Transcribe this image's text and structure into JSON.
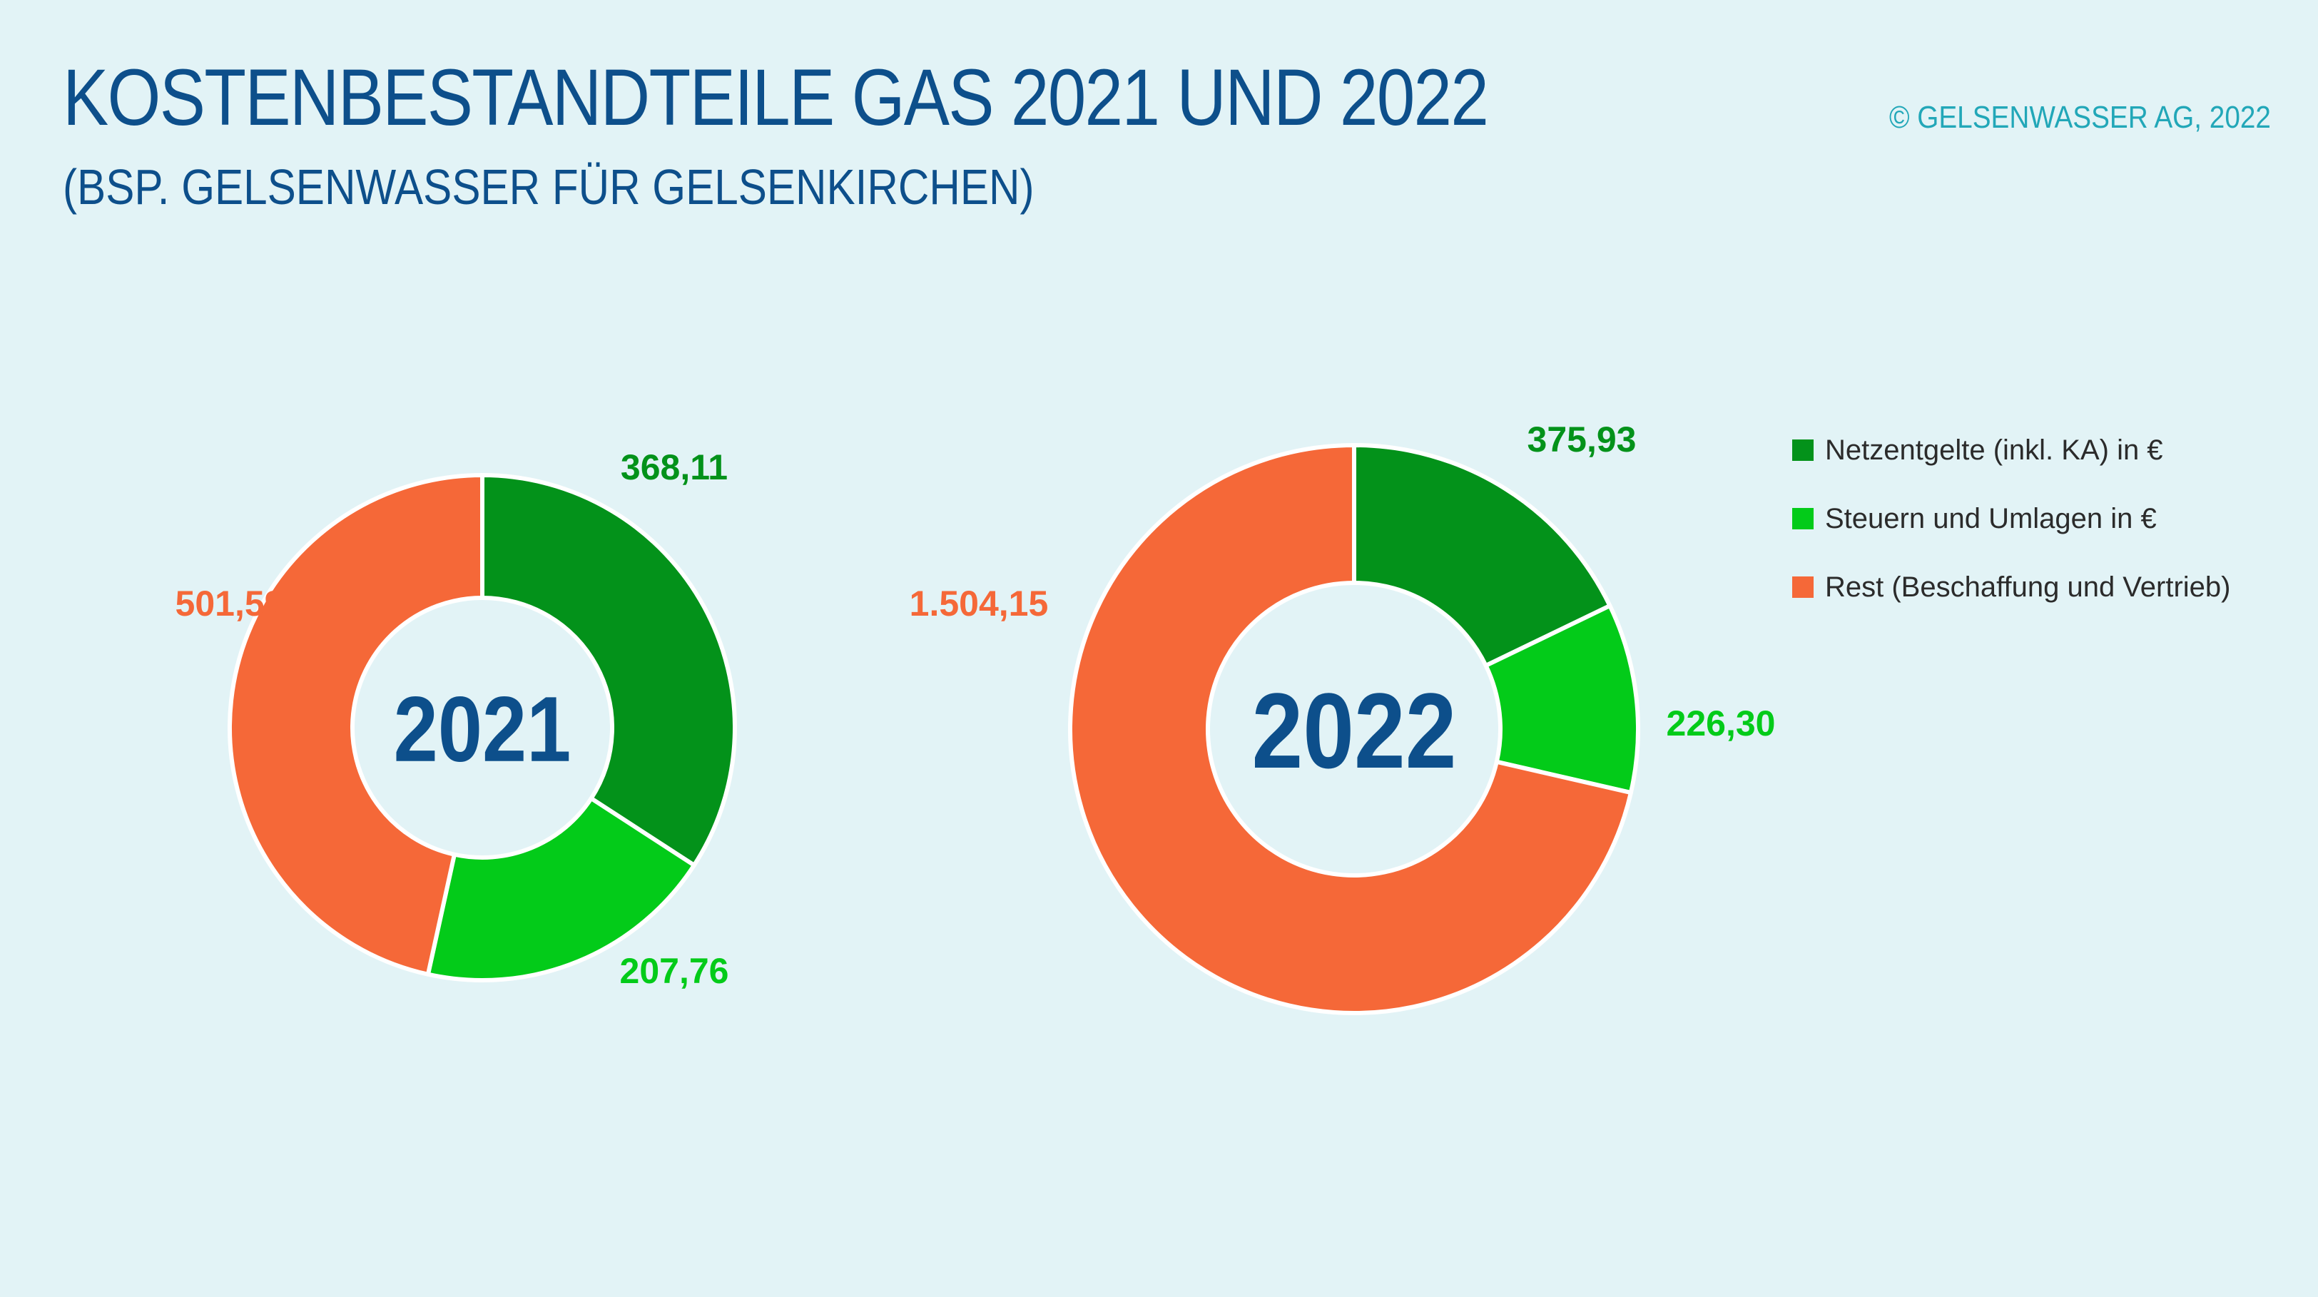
{
  "header": {
    "title": "KOSTENBESTANDTEILE GAS 2021 UND 2022",
    "subtitle": "(BSP. GELSENWASSER FÜR GELSENKIRCHEN)",
    "copyright": "© GELSENWASSER AG, 2022"
  },
  "colors": {
    "netzentgelte": "#03921a",
    "steuern": "#03cb19",
    "rest": "#f56838",
    "center_text": "#0d4f8b"
  },
  "chart_data": [
    {
      "type": "pie",
      "center_label": "2021",
      "series": [
        {
          "name": "Netzentgelte (inkl. KA) in €",
          "value": 368.11,
          "label": "368,11"
        },
        {
          "name": "Steuern und Umlagen in €",
          "value": 207.76,
          "label": "207,76"
        },
        {
          "name": "Rest (Beschaffung und Vertrieb)",
          "value": 501.59,
          "label": "501,59"
        }
      ]
    },
    {
      "type": "pie",
      "center_label": "2022",
      "series": [
        {
          "name": "Netzentgelte (inkl. KA) in €",
          "value": 375.93,
          "label": "375,93"
        },
        {
          "name": "Steuern und Umlagen in €",
          "value": 226.3,
          "label": "226,30"
        },
        {
          "name": "Rest (Beschaffung und Vertrieb)",
          "value": 1504.15,
          "label": "1.504,15"
        }
      ]
    }
  ],
  "legend": [
    "Netzentgelte (inkl. KA) in €",
    "Steuern und Umlagen in €",
    "Rest (Beschaffung und Vertrieb)"
  ]
}
